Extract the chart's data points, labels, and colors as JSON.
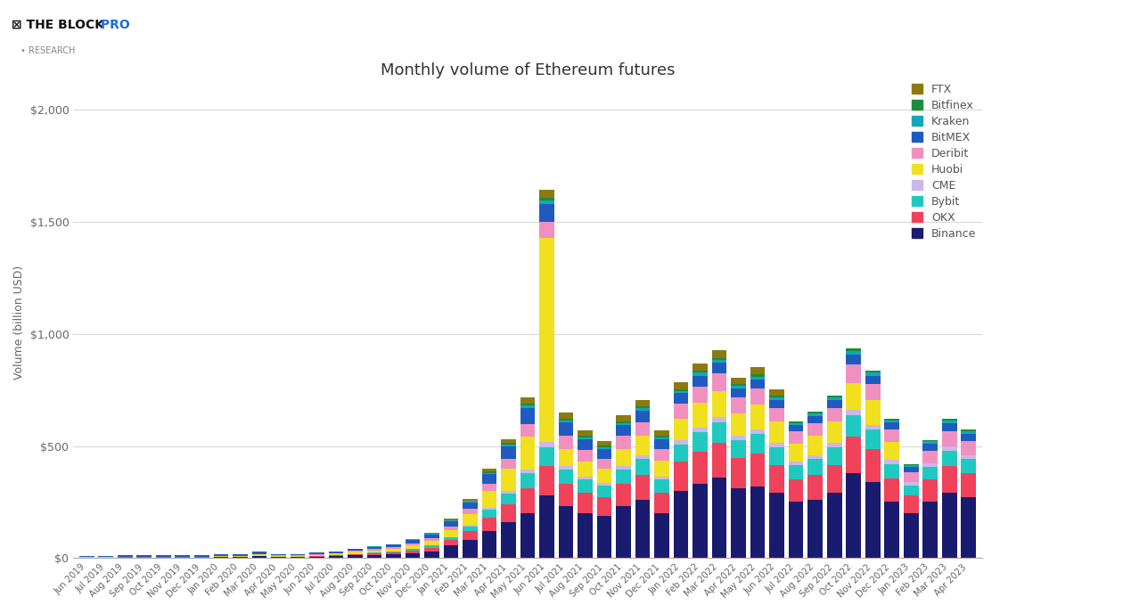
{
  "title": "Monthly volume of Ethereum futures",
  "ylabel": "Volume (billion USD)",
  "yticks": [
    0,
    500,
    1000,
    1500,
    2000
  ],
  "ytick_labels": [
    "$0",
    "$500",
    "$1,000",
    "$1,500",
    "$2,000"
  ],
  "ylim": [
    0,
    2100
  ],
  "background_color": "#ffffff",
  "grid_color": "#d8d8d8",
  "exchanges": [
    "Binance",
    "OKX",
    "Bybit",
    "CME",
    "Huobi",
    "Deribit",
    "BitMEX",
    "Kraken",
    "Bitfinex",
    "FTX"
  ],
  "colors": {
    "Binance": "#1a1a6e",
    "OKX": "#f0425a",
    "Bybit": "#20c9c0",
    "CME": "#c9b8e8",
    "Huobi": "#f0e020",
    "Deribit": "#f090c0",
    "BitMEX": "#1f5bbf",
    "Kraken": "#12a8b8",
    "Bitfinex": "#1e8c3a",
    "FTX": "#8c7a10"
  },
  "months": [
    "Jun 2019",
    "Jul 2019",
    "Aug 2019",
    "Sep 2019",
    "Oct 2019",
    "Nov 2019",
    "Dec 2019",
    "Jan 2020",
    "Feb 2020",
    "Mar 2020",
    "Apr 2020",
    "May 2020",
    "Jun 2020",
    "Jul 2020",
    "Aug 2020",
    "Sep 2020",
    "Oct 2020",
    "Nov 2020",
    "Dec 2020",
    "Jan 2021",
    "Feb 2021",
    "Mar 2021",
    "Apr 2021",
    "May 2021",
    "Jun 2021",
    "Jul 2021",
    "Aug 2021",
    "Sep 2021",
    "Oct 2021",
    "Nov 2021",
    "Dec 2021",
    "Jan 2022",
    "Feb 2022",
    "Mar 2022",
    "Apr 2022",
    "May 2022",
    "Jun 2022",
    "Jul 2022",
    "Aug 2022",
    "Sep 2022",
    "Oct 2022",
    "Nov 2022",
    "Dec 2022",
    "Jan 2023",
    "Feb 2023",
    "Mar 2023",
    "Apr 2023"
  ],
  "data": {
    "Binance": [
      2,
      2,
      3,
      3,
      3,
      3,
      3,
      4,
      4,
      8,
      5,
      5,
      6,
      8,
      12,
      15,
      18,
      22,
      30,
      55,
      80,
      120,
      160,
      200,
      280,
      230,
      200,
      190,
      230,
      260,
      200,
      300,
      330,
      360,
      310,
      320,
      290,
      250,
      260,
      290,
      380,
      340,
      250,
      200,
      250,
      290,
      270
    ],
    "OKX": [
      1,
      1,
      1,
      1,
      1,
      1,
      1,
      2,
      2,
      3,
      2,
      2,
      3,
      4,
      5,
      6,
      8,
      12,
      16,
      25,
      40,
      60,
      80,
      110,
      130,
      100,
      90,
      80,
      100,
      110,
      90,
      130,
      145,
      155,
      135,
      145,
      125,
      100,
      110,
      125,
      160,
      145,
      105,
      80,
      100,
      120,
      110
    ],
    "Bybit": [
      0,
      0,
      0,
      0,
      0,
      0,
      0,
      0,
      0,
      0,
      0,
      0,
      1,
      1,
      2,
      3,
      4,
      6,
      9,
      14,
      22,
      35,
      48,
      68,
      85,
      65,
      60,
      55,
      65,
      72,
      60,
      78,
      88,
      92,
      82,
      88,
      78,
      65,
      72,
      78,
      98,
      88,
      65,
      45,
      56,
      68,
      62
    ],
    "CME": [
      0,
      0,
      0,
      0,
      0,
      0,
      0,
      0,
      0,
      0,
      0,
      0,
      0,
      0,
      0,
      0,
      0,
      0,
      0,
      0,
      5,
      9,
      12,
      17,
      22,
      17,
      14,
      12,
      14,
      17,
      14,
      17,
      20,
      22,
      20,
      22,
      20,
      17,
      18,
      20,
      24,
      22,
      17,
      14,
      17,
      20,
      18
    ],
    "Huobi": [
      1,
      1,
      2,
      2,
      2,
      2,
      2,
      3,
      3,
      5,
      4,
      4,
      5,
      7,
      9,
      11,
      13,
      18,
      22,
      32,
      50,
      75,
      100,
      145,
      910,
      75,
      65,
      60,
      78,
      85,
      70,
      95,
      108,
      115,
      100,
      108,
      95,
      80,
      85,
      95,
      120,
      108,
      80,
      0,
      0,
      0,
      0
    ],
    "Deribit": [
      1,
      1,
      1,
      1,
      1,
      1,
      1,
      2,
      2,
      3,
      2,
      2,
      3,
      3,
      4,
      5,
      6,
      8,
      11,
      16,
      22,
      32,
      43,
      58,
      72,
      57,
      52,
      47,
      57,
      62,
      52,
      67,
      73,
      78,
      68,
      73,
      62,
      52,
      57,
      62,
      82,
      73,
      57,
      42,
      57,
      68,
      62
    ],
    "BitMEX": [
      6,
      6,
      7,
      7,
      6,
      5,
      5,
      6,
      6,
      10,
      6,
      5,
      6,
      7,
      9,
      10,
      12,
      15,
      17,
      22,
      30,
      42,
      55,
      70,
      82,
      60,
      48,
      42,
      48,
      50,
      42,
      48,
      50,
      48,
      42,
      42,
      36,
      30,
      33,
      36,
      45,
      38,
      30,
      24,
      30,
      36,
      33
    ],
    "Kraken": [
      0,
      0,
      0,
      0,
      0,
      0,
      0,
      0,
      0,
      0,
      0,
      0,
      0,
      0,
      0,
      1,
      1,
      2,
      3,
      4,
      5,
      7,
      9,
      12,
      15,
      11,
      10,
      9,
      11,
      12,
      10,
      11,
      12,
      13,
      11,
      12,
      10,
      9,
      10,
      11,
      14,
      12,
      10,
      8,
      10,
      11,
      10
    ],
    "Bitfinex": [
      0,
      0,
      0,
      0,
      0,
      0,
      0,
      0,
      0,
      0,
      0,
      0,
      0,
      0,
      0,
      0,
      0,
      1,
      1,
      2,
      3,
      5,
      6,
      8,
      11,
      8,
      7,
      6,
      7,
      8,
      7,
      8,
      9,
      10,
      8,
      9,
      8,
      7,
      7,
      8,
      11,
      9,
      7,
      6,
      7,
      8,
      8
    ],
    "FTX": [
      0,
      0,
      0,
      0,
      0,
      0,
      0,
      0,
      0,
      0,
      0,
      0,
      0,
      0,
      0,
      0,
      0,
      0,
      3,
      5,
      8,
      13,
      18,
      27,
      36,
      27,
      24,
      21,
      26,
      30,
      24,
      30,
      33,
      36,
      30,
      33,
      30,
      0,
      0,
      0,
      0,
      0,
      0,
      0,
      0,
      0,
      0
    ]
  }
}
